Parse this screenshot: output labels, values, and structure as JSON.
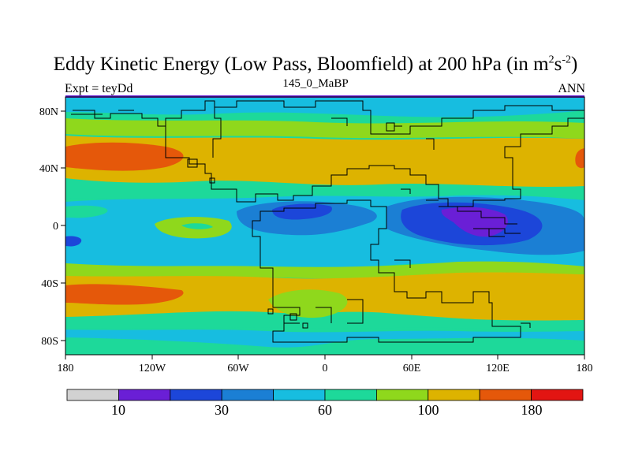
{
  "title": "Eddy Kinetic Energy (Low Pass, Bloomfield) at 200 hPa (in m",
  "title_sup1": "2",
  "title_mid": "s",
  "title_sup2": "-2",
  "title_end": ")",
  "subtitle": "145_0_MaBP",
  "left_label": "Expt = teyDd",
  "right_label": "ANN",
  "chart_data": {
    "type": "heatmap",
    "description_variable": "Eddy kinetic energy",
    "units": "m2 s-2",
    "x_range": [
      -180,
      180
    ],
    "y_range": [
      -90,
      90
    ],
    "x_ticks": [
      "180",
      "120W",
      "60W",
      "0",
      "60E",
      "120E",
      "180"
    ],
    "y_ticks": [
      "80N",
      "40N",
      "0",
      "40S",
      "80S"
    ],
    "colorbar": {
      "levels_labeled": [
        "10",
        "30",
        "60",
        "100",
        "180"
      ],
      "colors": [
        "#d2d2d2",
        "#6a1fd6",
        "#1c46d9",
        "#1b7fd4",
        "#17bde0",
        "#1dd99a",
        "#8fd81c",
        "#ddb300",
        "#e5580a",
        "#e21512"
      ]
    }
  }
}
